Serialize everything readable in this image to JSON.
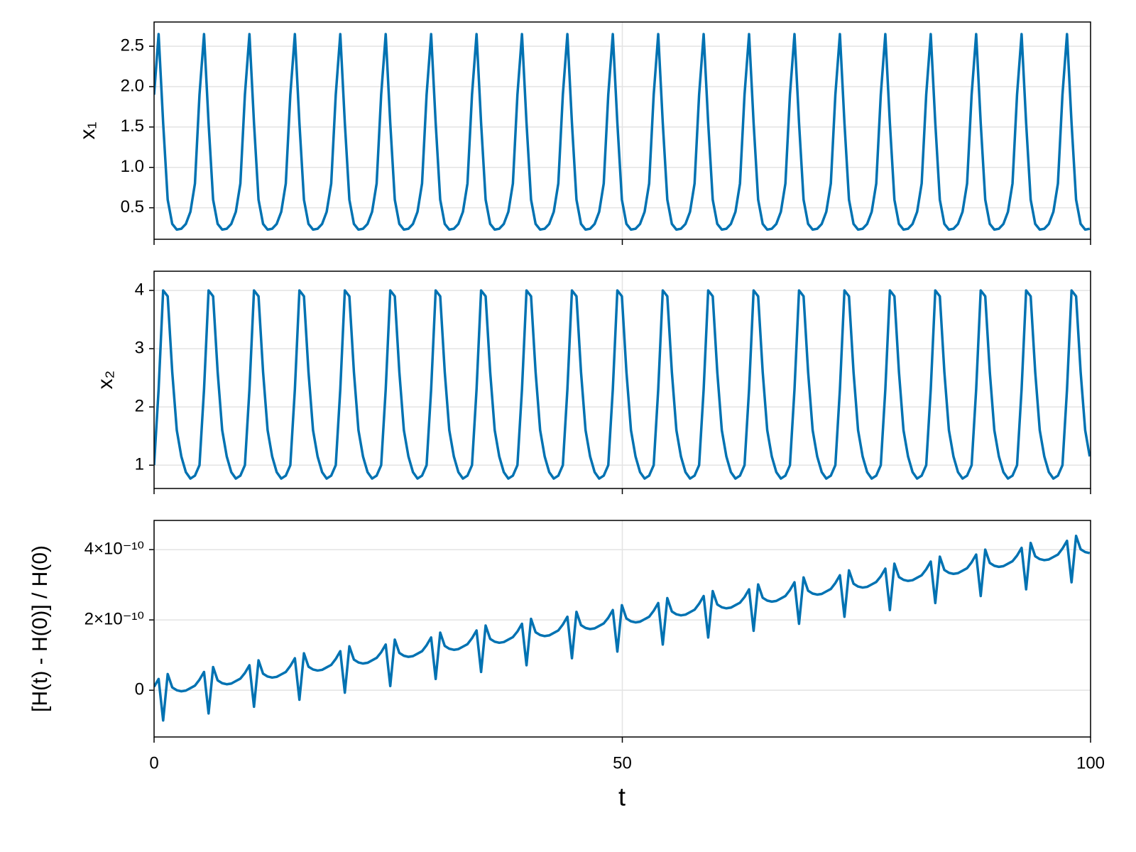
{
  "chart_data": {
    "type": "line",
    "color": "#0072b2",
    "grid": true,
    "xlabel": "t",
    "xlim": [
      0,
      100
    ],
    "xticks": [
      0,
      50,
      100
    ],
    "x": [
      0,
      0.485,
      0.97,
      1.455,
      1.94,
      2.425,
      2.91,
      3.395,
      3.88,
      4.365,
      4.85,
      5.335,
      5.82,
      6.305,
      6.79,
      7.275,
      7.76,
      8.245,
      8.73,
      9.215,
      9.7,
      10.185,
      10.67,
      11.155,
      11.64,
      12.125,
      12.61,
      13.095,
      13.58,
      14.065,
      14.55,
      15.035,
      15.52,
      16.005,
      16.49,
      16.975,
      17.46,
      17.945,
      18.43,
      18.915,
      19.4,
      19.885,
      20.37,
      20.855,
      21.34,
      21.825,
      22.31,
      22.795,
      23.28,
      23.765,
      24.25,
      24.735,
      25.22,
      25.705,
      26.19,
      26.675,
      27.16,
      27.645,
      28.13,
      28.615,
      29.1,
      29.585,
      30.07,
      30.555,
      31.04,
      31.525,
      32.01,
      32.495,
      32.98,
      33.465,
      33.95,
      34.435,
      34.92,
      35.405,
      35.89,
      36.375,
      36.86,
      37.345,
      37.83,
      38.315,
      38.8,
      39.285,
      39.77,
      40.255,
      40.74,
      41.225,
      41.71,
      42.195,
      42.68,
      43.165,
      43.65,
      44.135,
      44.62,
      45.105,
      45.59,
      46.075,
      46.56,
      47.045,
      47.53,
      48.015,
      48.5,
      48.985,
      49.47,
      49.955,
      50.44,
      50.925,
      51.41,
      51.895,
      52.38,
      52.865,
      53.35,
      53.835,
      54.32,
      54.805,
      55.29,
      55.775,
      56.26,
      56.745,
      57.23,
      57.715,
      58.2,
      58.685,
      59.17,
      59.655,
      60.14,
      60.625,
      61.11,
      61.595,
      62.08,
      62.565,
      63.05,
      63.535,
      64.02,
      64.505,
      64.99,
      65.475,
      65.96,
      66.445,
      66.93,
      67.415,
      67.9,
      68.385,
      68.87,
      69.355,
      69.84,
      70.325,
      70.81,
      71.295,
      71.78,
      72.265,
      72.75,
      73.235,
      73.72,
      74.205,
      74.69,
      75.175,
      75.66,
      76.145,
      76.63,
      77.115,
      77.6,
      78.085,
      78.57,
      79.055,
      79.54,
      80.025,
      80.51,
      80.995,
      81.48,
      81.965,
      82.45,
      82.935,
      83.42,
      83.905,
      84.39,
      84.875,
      85.36,
      85.845,
      86.33,
      86.815,
      87.3,
      87.785,
      88.27,
      88.755,
      89.24,
      89.725,
      90.21,
      90.695,
      91.18,
      91.665,
      92.15,
      92.635,
      93.12,
      93.605,
      94.09,
      94.575,
      95.06,
      95.545,
      96.03,
      96.515,
      97,
      97.485,
      97.97,
      98.455,
      98.94,
      99.425,
      99.91
    ],
    "panels": [
      {
        "ylabel": "x₁",
        "ylim": [
          0.11,
          2.8
        ],
        "yticks": [
          0.5,
          {
            "value": 1,
            "label": "1.0"
          },
          1.5,
          {
            "value": 2,
            "label": "2.0"
          },
          2.5
        ],
        "values": [
          1.9,
          2.65,
          1.55,
          0.6,
          0.3,
          0.23,
          0.24,
          0.3,
          0.45,
          0.8,
          1.9,
          2.65,
          1.55,
          0.6,
          0.3,
          0.23,
          0.24,
          0.3,
          0.45,
          0.8,
          1.9,
          2.65,
          1.55,
          0.6,
          0.3,
          0.23,
          0.24,
          0.3,
          0.45,
          0.8,
          1.9,
          2.65,
          1.55,
          0.6,
          0.3,
          0.23,
          0.24,
          0.3,
          0.45,
          0.8,
          1.9,
          2.65,
          1.55,
          0.6,
          0.3,
          0.23,
          0.24,
          0.3,
          0.45,
          0.8,
          1.9,
          2.65,
          1.55,
          0.6,
          0.3,
          0.23,
          0.24,
          0.3,
          0.45,
          0.8,
          1.9,
          2.65,
          1.55,
          0.6,
          0.3,
          0.23,
          0.24,
          0.3,
          0.45,
          0.8,
          1.9,
          2.65,
          1.55,
          0.6,
          0.3,
          0.23,
          0.24,
          0.3,
          0.45,
          0.8,
          1.9,
          2.65,
          1.55,
          0.6,
          0.3,
          0.23,
          0.24,
          0.3,
          0.45,
          0.8,
          1.9,
          2.65,
          1.55,
          0.6,
          0.3,
          0.23,
          0.24,
          0.3,
          0.45,
          0.8,
          1.9,
          2.65,
          1.55,
          0.6,
          0.3,
          0.23,
          0.24,
          0.3,
          0.45,
          0.8,
          1.9,
          2.65,
          1.55,
          0.6,
          0.3,
          0.23,
          0.24,
          0.3,
          0.45,
          0.8,
          1.9,
          2.65,
          1.55,
          0.6,
          0.3,
          0.23,
          0.24,
          0.3,
          0.45,
          0.8,
          1.9,
          2.65,
          1.55,
          0.6,
          0.3,
          0.23,
          0.24,
          0.3,
          0.45,
          0.8,
          1.9,
          2.65,
          1.55,
          0.6,
          0.3,
          0.23,
          0.24,
          0.3,
          0.45,
          0.8,
          1.9,
          2.65,
          1.55,
          0.6,
          0.3,
          0.23,
          0.24,
          0.3,
          0.45,
          0.8,
          1.9,
          2.65,
          1.55,
          0.6,
          0.3,
          0.23,
          0.24,
          0.3,
          0.45,
          0.8,
          1.9,
          2.65,
          1.55,
          0.6,
          0.3,
          0.23,
          0.24,
          0.3,
          0.45,
          0.8,
          1.9,
          2.65,
          1.55,
          0.6,
          0.3,
          0.23,
          0.24,
          0.3,
          0.45,
          0.8,
          1.9,
          2.65,
          1.55,
          0.6,
          0.3,
          0.23,
          0.24,
          0.3,
          0.45,
          0.8,
          1.9,
          2.65,
          1.55,
          0.6,
          0.3,
          0.23,
          0.24
        ]
      },
      {
        "ylabel": "x₂",
        "ylim": [
          0.6,
          4.33
        ],
        "yticks": [
          1,
          2,
          3,
          4
        ],
        "values": [
          1,
          2.3,
          4,
          3.9,
          2.6,
          1.6,
          1.15,
          0.88,
          0.77,
          0.82,
          1,
          2.3,
          4,
          3.9,
          2.6,
          1.6,
          1.15,
          0.88,
          0.77,
          0.82,
          1,
          2.3,
          4,
          3.9,
          2.6,
          1.6,
          1.15,
          0.88,
          0.77,
          0.82,
          1,
          2.3,
          4,
          3.9,
          2.6,
          1.6,
          1.15,
          0.88,
          0.77,
          0.82,
          1,
          2.3,
          4,
          3.9,
          2.6,
          1.6,
          1.15,
          0.88,
          0.77,
          0.82,
          1,
          2.3,
          4,
          3.9,
          2.6,
          1.6,
          1.15,
          0.88,
          0.77,
          0.82,
          1,
          2.3,
          4,
          3.9,
          2.6,
          1.6,
          1.15,
          0.88,
          0.77,
          0.82,
          1,
          2.3,
          4,
          3.9,
          2.6,
          1.6,
          1.15,
          0.88,
          0.77,
          0.82,
          1,
          2.3,
          4,
          3.9,
          2.6,
          1.6,
          1.15,
          0.88,
          0.77,
          0.82,
          1,
          2.3,
          4,
          3.9,
          2.6,
          1.6,
          1.15,
          0.88,
          0.77,
          0.82,
          1,
          2.3,
          4,
          3.9,
          2.6,
          1.6,
          1.15,
          0.88,
          0.77,
          0.82,
          1,
          2.3,
          4,
          3.9,
          2.6,
          1.6,
          1.15,
          0.88,
          0.77,
          0.82,
          1,
          2.3,
          4,
          3.9,
          2.6,
          1.6,
          1.15,
          0.88,
          0.77,
          0.82,
          1,
          2.3,
          4,
          3.9,
          2.6,
          1.6,
          1.15,
          0.88,
          0.77,
          0.82,
          1,
          2.3,
          4,
          3.9,
          2.6,
          1.6,
          1.15,
          0.88,
          0.77,
          0.82,
          1,
          2.3,
          4,
          3.9,
          2.6,
          1.6,
          1.15,
          0.88,
          0.77,
          0.82,
          1,
          2.3,
          4,
          3.9,
          2.6,
          1.6,
          1.15,
          0.88,
          0.77,
          0.82,
          1,
          2.3,
          4,
          3.9,
          2.6,
          1.6,
          1.15,
          0.88,
          0.77,
          0.82,
          1,
          2.3,
          4,
          3.9,
          2.6,
          1.6,
          1.15,
          0.88,
          0.77,
          0.82,
          1,
          2.3,
          4,
          3.9,
          2.6,
          1.6,
          1.15,
          0.88,
          0.77,
          0.82,
          1,
          2.3,
          4,
          3.9,
          2.6,
          1.6,
          1.15
        ]
      },
      {
        "ylabel": "[H(t) - H(0)] / H(0)",
        "ylim": [
          -1.33e-10,
          4.83e-10
        ],
        "yticks": [
          0,
          {
            "value": 2e-10,
            "label": "2×10⁻¹⁰"
          },
          {
            "value": 4e-10,
            "label": "4×10⁻¹⁰"
          }
        ],
        "values": [
          1e-11,
          3.2e-11,
          -8.6e-11,
          4.6e-11,
          8e-12,
          0,
          -3e-12,
          -1e-12,
          6e-12,
          1.3e-11,
          3e-11,
          5.2e-11,
          -6.6e-11,
          6.6e-11,
          2.8e-11,
          2e-11,
          1.7e-11,
          1.9e-11,
          2.6e-11,
          3.3e-11,
          4.9e-11,
          7.1e-11,
          -4.7e-11,
          8.5e-11,
          4.7e-11,
          3.9e-11,
          3.6e-11,
          3.8e-11,
          4.5e-11,
          5.2e-11,
          6.9e-11,
          9.1e-11,
          -2.7e-11,
          1.05e-10,
          6.7e-11,
          5.9e-11,
          5.6e-11,
          5.8e-11,
          6.5e-11,
          7.2e-11,
          8.9e-11,
          1.11e-10,
          -7e-12,
          1.25e-10,
          8.7e-11,
          7.9e-11,
          7.6e-11,
          7.8e-11,
          8.5e-11,
          9.2e-11,
          1.08e-10,
          1.3e-10,
          1.2e-11,
          1.44e-10,
          1.06e-10,
          9.8e-11,
          9.5e-11,
          9.7e-11,
          1.04e-10,
          1.11e-10,
          1.28e-10,
          1.5e-10,
          3.2e-11,
          1.64e-10,
          1.26e-10,
          1.18e-10,
          1.15e-10,
          1.17e-10,
          1.24e-10,
          1.31e-10,
          1.48e-10,
          1.7e-10,
          5.2e-11,
          1.84e-10,
          1.46e-10,
          1.38e-10,
          1.35e-10,
          1.37e-10,
          1.44e-10,
          1.51e-10,
          1.67e-10,
          1.89e-10,
          7.1e-11,
          2.03e-10,
          1.65e-10,
          1.57e-10,
          1.54e-10,
          1.56e-10,
          1.63e-10,
          1.7e-10,
          1.87e-10,
          2.09e-10,
          9.1e-11,
          2.23e-10,
          1.85e-10,
          1.77e-10,
          1.74e-10,
          1.76e-10,
          1.83e-10,
          1.9e-10,
          2.06e-10,
          2.28e-10,
          1.1e-10,
          2.42e-10,
          2.04e-10,
          1.96e-10,
          1.93e-10,
          1.95e-10,
          2.02e-10,
          2.09e-10,
          2.26e-10,
          2.48e-10,
          1.3e-10,
          2.62e-10,
          2.24e-10,
          2.16e-10,
          2.13e-10,
          2.15e-10,
          2.22e-10,
          2.29e-10,
          2.46e-10,
          2.68e-10,
          1.5e-10,
          2.82e-10,
          2.44e-10,
          2.36e-10,
          2.33e-10,
          2.35e-10,
          2.42e-10,
          2.49e-10,
          2.65e-10,
          2.87e-10,
          1.69e-10,
          3.01e-10,
          2.63e-10,
          2.55e-10,
          2.52e-10,
          2.54e-10,
          2.61e-10,
          2.68e-10,
          2.85e-10,
          3.07e-10,
          1.89e-10,
          3.21e-10,
          2.83e-10,
          2.75e-10,
          2.72e-10,
          2.74e-10,
          2.81e-10,
          2.88e-10,
          3.05e-10,
          3.27e-10,
          2.09e-10,
          3.41e-10,
          3.03e-10,
          2.95e-10,
          2.92e-10,
          2.94e-10,
          3.01e-10,
          3.08e-10,
          3.24e-10,
          3.46e-10,
          2.28e-10,
          3.6e-10,
          3.22e-10,
          3.14e-10,
          3.11e-10,
          3.13e-10,
          3.2e-10,
          3.27e-10,
          3.44e-10,
          3.66e-10,
          2.48e-10,
          3.8e-10,
          3.42e-10,
          3.34e-10,
          3.31e-10,
          3.33e-10,
          3.4e-10,
          3.47e-10,
          3.64e-10,
          3.86e-10,
          2.68e-10,
          4e-10,
          3.62e-10,
          3.54e-10,
          3.51e-10,
          3.53e-10,
          3.6e-10,
          3.67e-10,
          3.83e-10,
          4.05e-10,
          2.87e-10,
          4.19e-10,
          3.81e-10,
          3.73e-10,
          3.7e-10,
          3.72e-10,
          3.79e-10,
          3.86e-10,
          4.03e-10,
          4.25e-10,
          3.07e-10,
          4.39e-10,
          4.01e-10,
          3.93e-10,
          3.9e-10
        ]
      }
    ]
  }
}
